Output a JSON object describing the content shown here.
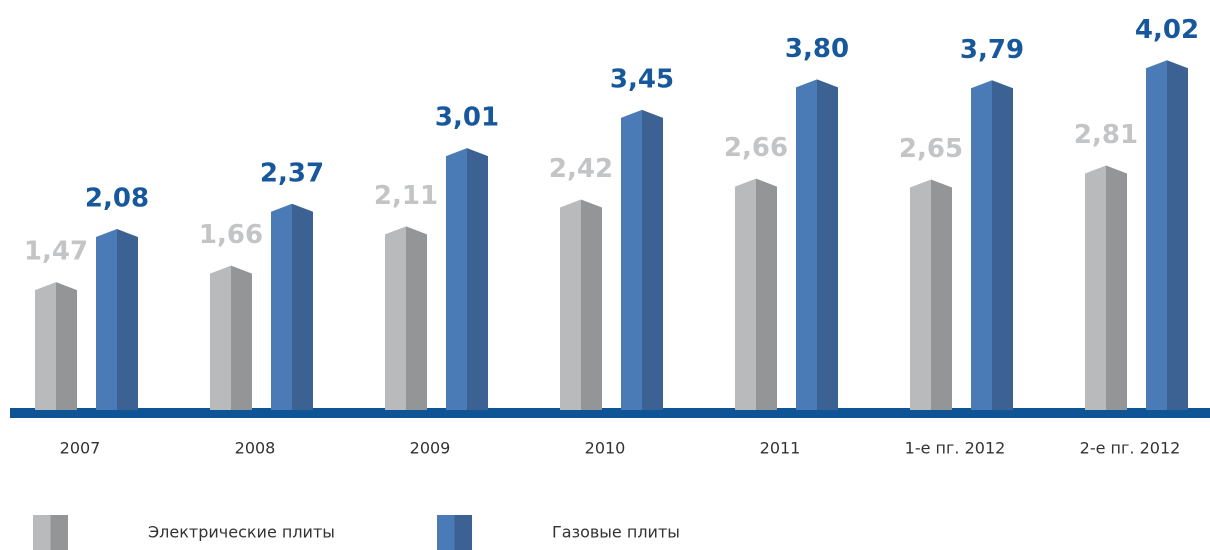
{
  "chart_data": {
    "type": "bar",
    "categories": [
      "2007",
      "2008",
      "2009",
      "2010",
      "2011",
      "1-е пг. 2012",
      "2-е пг. 2012"
    ],
    "series": [
      {
        "name": "Электрические плиты",
        "color": "#b9babc",
        "label_color": "#c3c4c6",
        "values": [
          1.47,
          1.66,
          2.11,
          2.42,
          2.66,
          2.65,
          2.81
        ],
        "value_labels": [
          "1,47",
          "1,66",
          "2,11",
          "2,42",
          "2,66",
          "2,65",
          "2,81"
        ]
      },
      {
        "name": "Газовые плиты",
        "color": "#4a7bb6",
        "label_color": "#17589c",
        "values": [
          2.08,
          2.37,
          3.01,
          3.45,
          3.8,
          3.79,
          4.02
        ],
        "value_labels": [
          "2,08",
          "2,37",
          "3,01",
          "3,45",
          "3,80",
          "3,79",
          "4,02"
        ]
      }
    ]
  }
}
